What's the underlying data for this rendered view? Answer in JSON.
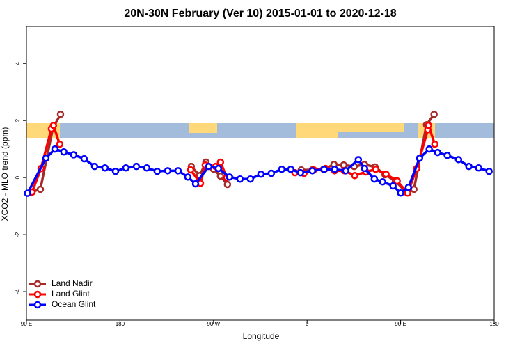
{
  "chart_data": {
    "type": "line",
    "title": "20N-30N February (Ver 10)   2015-01-01 to 2020-12-18",
    "x_label": "Longitude",
    "y_label": "XCO2 - MLO trend (ppm)",
    "xlim": [
      90,
      540
    ],
    "ylim": [
      -5,
      5.3
    ],
    "xticks": [
      {
        "value": 90,
        "label": "90 E"
      },
      180,
      {
        "value": 270,
        "label": "90 W"
      },
      {
        "value": 360,
        "label": "0"
      },
      {
        "value": 450,
        "label": "90 E"
      },
      {
        "value": 540,
        "label": "180"
      }
    ],
    "yticks": [
      -4,
      -2,
      0,
      2,
      4
    ],
    "legend": "bottom-left",
    "series": [
      {
        "name": "Land Nadir",
        "color": "#a52a2a",
        "x": [
          94,
          103.4,
          115.4,
          122.8,
          null,
          248.6,
          256.7,
          262.7,
          270,
          276.7,
          283.4,
          null,
          354.4,
          365,
          375.8,
          385.9,
          395.2,
          405.3,
          415.3,
          425.4,
          435,
          445,
          455,
          462.8,
          474.9,
          482.2
        ],
        "values": [
          -0.51,
          -0.41,
          1.73,
          2.22,
          null,
          0.39,
          0.07,
          0.54,
          0.3,
          0.05,
          -0.24,
          null,
          0.27,
          0.27,
          0.29,
          0.46,
          0.44,
          0.39,
          0.46,
          0.37,
          0.1,
          -0.12,
          -0.5,
          -0.41,
          1.85,
          2.22
        ]
      },
      {
        "name": "Land Glint",
        "color": "#ff0000",
        "x": [
          95.4,
          104,
          114,
          116,
          122,
          null,
          248,
          257.4,
          262,
          272,
          276.7,
          282.7,
          null,
          348.3,
          357,
          366.4,
          377.8,
          386.5,
          395.9,
          405.9,
          416.6,
          426,
          436,
          446.7,
          456.8,
          465.5,
          476.2,
          476.8,
          482.9
        ],
        "values": [
          -0.51,
          0.32,
          1.71,
          1.83,
          1.17,
          null,
          0.27,
          -0.2,
          0.44,
          0.39,
          0.54,
          0.0,
          null,
          0.17,
          0.15,
          0.27,
          0.32,
          0.24,
          0.24,
          0.07,
          0.2,
          0.29,
          0.12,
          -0.12,
          -0.54,
          0.32,
          1.68,
          1.83,
          1.17
        ]
      },
      {
        "name": "Ocean Glint",
        "color": "#0000ff",
        "x": [
          91,
          108.7,
          117.4,
          126,
          135.5,
          145.5,
          155.6,
          165.6,
          175.7,
          185.7,
          195.8,
          205.8,
          215.8,
          225.9,
          235.9,
          245.3,
          252.7,
          265.4,
          274.7,
          285.4,
          295.5,
          305.5,
          315.6,
          325.6,
          335.6,
          344.3,
          353.7,
          365.1,
          376.5,
          386.5,
          397.2,
          409.3,
          415.3,
          424.7,
          432.7,
          442.7,
          450,
          457.5,
          468.2,
          477.5,
          485.6,
          494.9,
          505.7,
          515.7,
          525.1,
          535.1
        ],
        "values": [
          -0.55,
          0.68,
          1.0,
          0.9,
          0.8,
          0.66,
          0.39,
          0.34,
          0.22,
          0.34,
          0.39,
          0.34,
          0.22,
          0.24,
          0.24,
          0.02,
          -0.22,
          0.39,
          0.32,
          0.02,
          -0.05,
          -0.05,
          0.12,
          0.15,
          0.29,
          0.29,
          0.17,
          0.24,
          0.29,
          0.29,
          0.24,
          0.63,
          0.32,
          -0.05,
          -0.15,
          -0.29,
          -0.54,
          -0.34,
          0.68,
          1.0,
          0.88,
          0.78,
          0.63,
          0.39,
          0.34,
          0.22
        ]
      }
    ]
  }
}
